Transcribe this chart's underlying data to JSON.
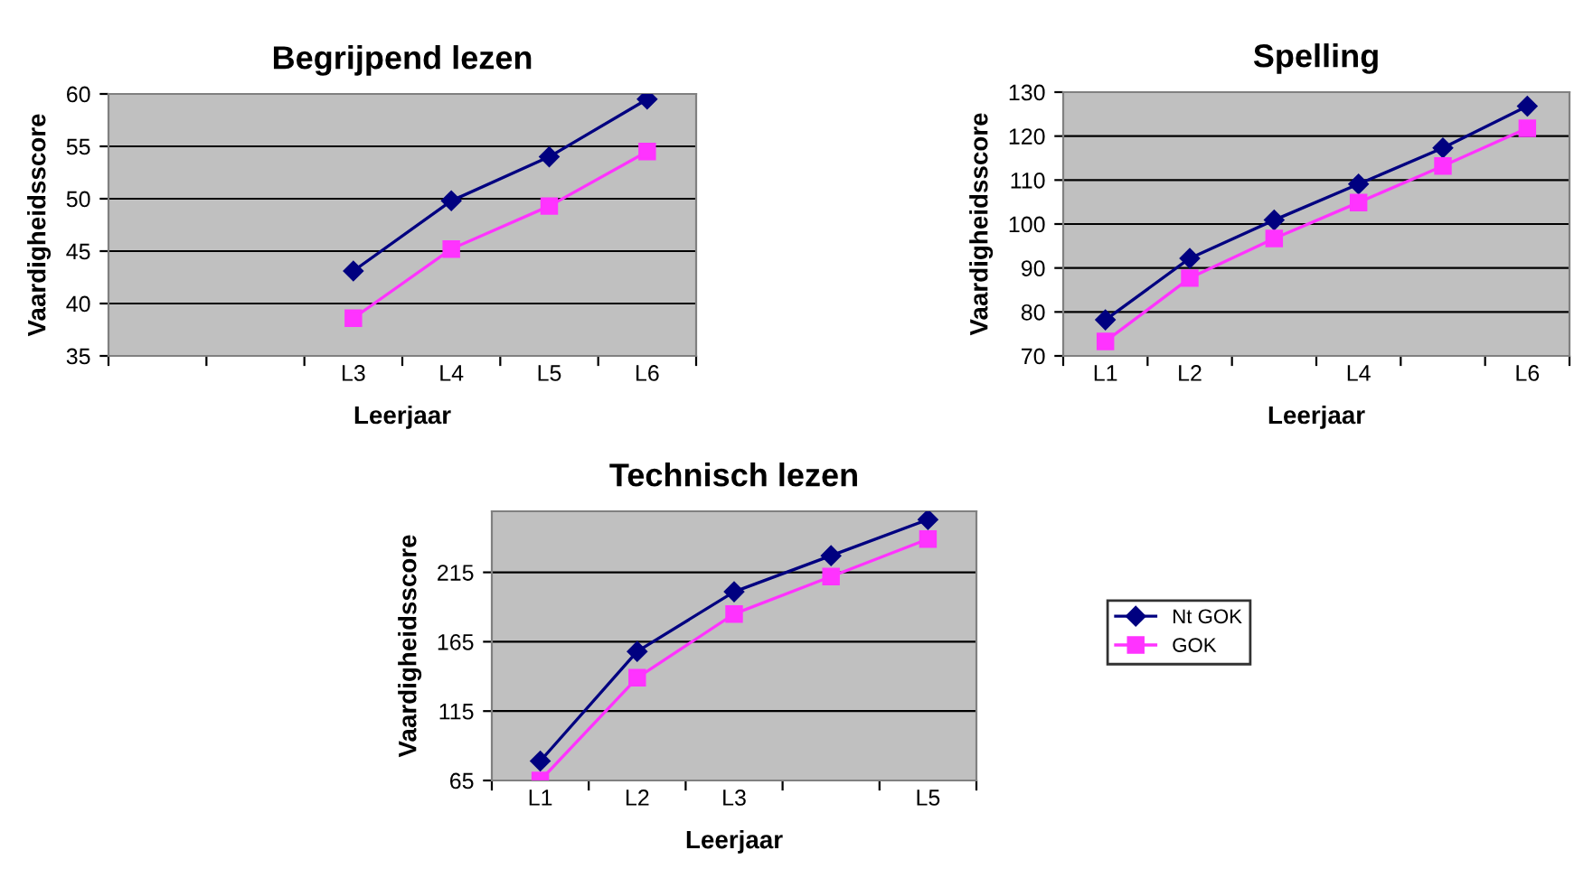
{
  "chart_data": [
    {
      "type": "line",
      "title": "Begrijpend lezen",
      "xlabel": "Leerjaar",
      "ylabel": "Vaardigheidsscore",
      "categories": [
        null,
        null,
        "L3",
        "L4",
        "L5",
        "L6"
      ],
      "ylim": [
        35,
        60
      ],
      "yticks": [
        35,
        40,
        45,
        50,
        55,
        60
      ],
      "grid": "y",
      "legend": false,
      "series": [
        {
          "color": "#000080",
          "marker": "diamond",
          "values": [
            null,
            null,
            43.1,
            49.8,
            54,
            59.5
          ]
        },
        {
          "color": "#ff33ff",
          "marker": "square",
          "values": [
            null,
            null,
            38.6,
            45.2,
            49.3,
            54.5
          ]
        }
      ]
    },
    {
      "type": "line",
      "title": "Spelling",
      "xlabel": "Leerjaar",
      "ylabel": "Vaardigheidsscore",
      "categories": [
        "L1",
        "L2",
        null,
        "L4",
        null,
        "L6"
      ],
      "ylim": [
        70,
        130
      ],
      "yticks": [
        70,
        80,
        90,
        100,
        110,
        120,
        130
      ],
      "grid": "y",
      "legend": false,
      "series": [
        {
          "color": "#000080",
          "marker": "diamond",
          "values": [
            78.2,
            92.2,
            100.9,
            109.1,
            117.3,
            126.8
          ]
        },
        {
          "color": "#ff33ff",
          "marker": "square",
          "values": [
            73.3,
            87.7,
            96.7,
            104.9,
            113.2,
            121.8
          ]
        }
      ]
    },
    {
      "type": "line",
      "title": "Technisch lezen",
      "xlabel": "Leerjaar",
      "ylabel": "Vaardigheidsscore",
      "categories": [
        "L1",
        "L2",
        "L3",
        null,
        "L5"
      ],
      "ylim": [
        65,
        259
      ],
      "yticks": [
        65,
        115,
        165,
        215
      ],
      "grid": "y",
      "legend": "right",
      "series": [
        {
          "name": "Nt GOK",
          "color": "#000080",
          "marker": "diamond",
          "values": [
            79,
            158,
            201,
            227,
            253
          ]
        },
        {
          "name": "GOK",
          "color": "#ff33ff",
          "marker": "square",
          "values": [
            65,
            139,
            185,
            212,
            239
          ]
        }
      ]
    }
  ]
}
